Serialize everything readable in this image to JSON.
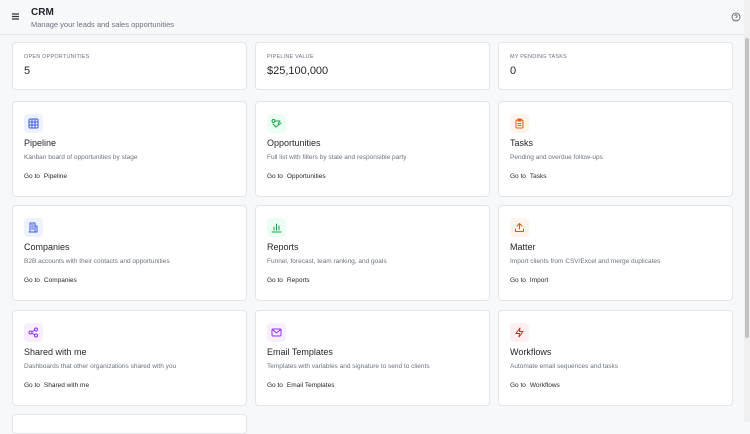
{
  "header": {
    "title": "CRM",
    "subtitle": "Manage your leads and sales opportunities"
  },
  "stats": [
    {
      "label": "OPEN OPPORTUNITIES",
      "value": "5"
    },
    {
      "label": "PIPELINE VALUE",
      "value": "$25,100,000"
    },
    {
      "label": "MY PENDING TASKS",
      "value": "0"
    }
  ],
  "link_prefix": "Go to",
  "modules": [
    {
      "title": "Pipeline",
      "description": "Kanban board of opportunities by stage",
      "link": "Pipeline"
    },
    {
      "title": "Opportunities",
      "description": "Full list with filters by state and responsible party",
      "link": "Opportunities"
    },
    {
      "title": "Tasks",
      "description": "Pending and overdue follow-ups",
      "link": "Tasks"
    },
    {
      "title": "Companies",
      "description": "B2B accounts with their contacts and opportunities",
      "link": "Companies"
    },
    {
      "title": "Reports",
      "description": "Funnel, forecast, team ranking, and goals",
      "link": "Reports"
    },
    {
      "title": "Matter",
      "description": "Import clients from CSV/Excel and merge duplicates",
      "link": "Import"
    },
    {
      "title": "Shared with me",
      "description": "Dashboards that other organizations shared with you",
      "link": "Shared with me"
    },
    {
      "title": "Email Templates",
      "description": "Templates with variables and signature to send to clients",
      "link": "Email Templates"
    },
    {
      "title": "Workflows",
      "description": "Automate email sequences and tasks",
      "link": "Workflows"
    }
  ]
}
